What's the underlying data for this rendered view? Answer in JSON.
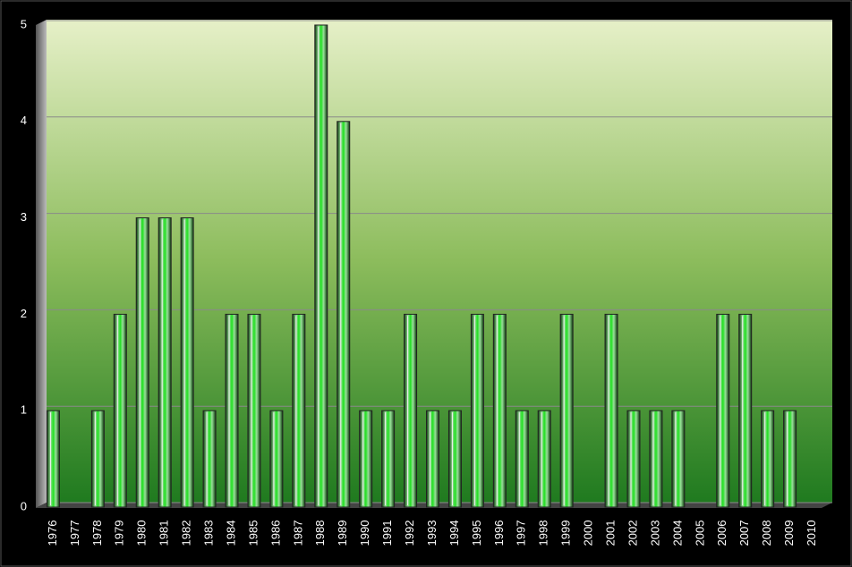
{
  "chart_data": {
    "type": "bar",
    "categories": [
      "1976",
      "1977",
      "1978",
      "1979",
      "1980",
      "1981",
      "1982",
      "1983",
      "1984",
      "1985",
      "1986",
      "1987",
      "1988",
      "1989",
      "1990",
      "1991",
      "1992",
      "1993",
      "1994",
      "1995",
      "1996",
      "1997",
      "1998",
      "1999",
      "2000",
      "2001",
      "2002",
      "2003",
      "2004",
      "2005",
      "2006",
      "2007",
      "2008",
      "2009",
      "2010"
    ],
    "values": [
      1,
      0,
      1,
      2,
      3,
      3,
      3,
      1,
      2,
      2,
      1,
      2,
      5,
      4,
      1,
      1,
      2,
      1,
      1,
      2,
      2,
      1,
      1,
      2,
      0,
      2,
      1,
      1,
      1,
      0,
      2,
      2,
      1,
      1,
      0
    ],
    "color": "#2ecc40",
    "ylim": [
      0,
      5
    ],
    "yticks": [
      0,
      1,
      2,
      3,
      4,
      5
    ],
    "grid": true
  }
}
